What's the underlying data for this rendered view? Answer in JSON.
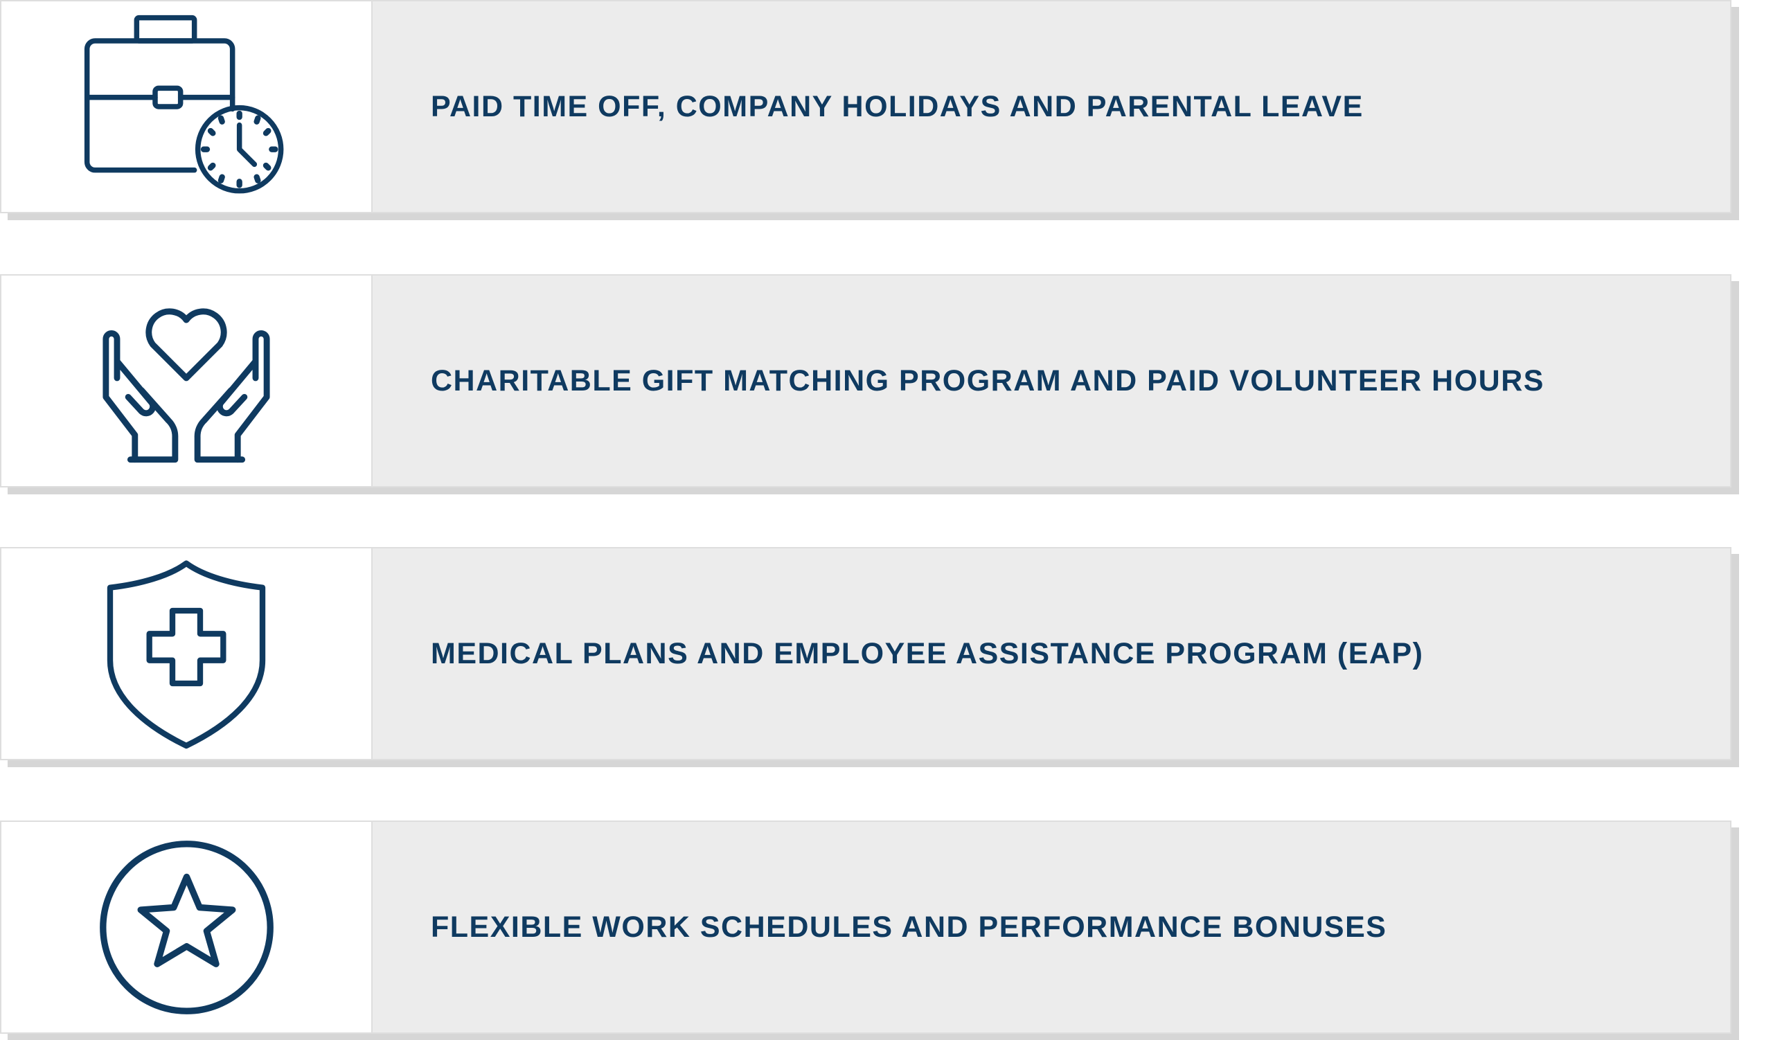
{
  "colors": {
    "icon": "#0f3a60",
    "text": "#0f3a60",
    "panel": "#ececec",
    "shadow": "#d6d6d6"
  },
  "benefits": [
    {
      "icon": "briefcase-clock-icon",
      "label": "PAID TIME OFF, COMPANY HOLIDAYS AND PARENTAL LEAVE"
    },
    {
      "icon": "hands-heart-icon",
      "label": "CHARITABLE GIFT MATCHING PROGRAM AND PAID VOLUNTEER HOURS"
    },
    {
      "icon": "shield-cross-icon",
      "label": "MEDICAL PLANS AND EMPLOYEE ASSISTANCE PROGRAM (EAP)"
    },
    {
      "icon": "star-circle-icon",
      "label": "FLEXIBLE WORK SCHEDULES AND PERFORMANCE BONUSES"
    }
  ]
}
